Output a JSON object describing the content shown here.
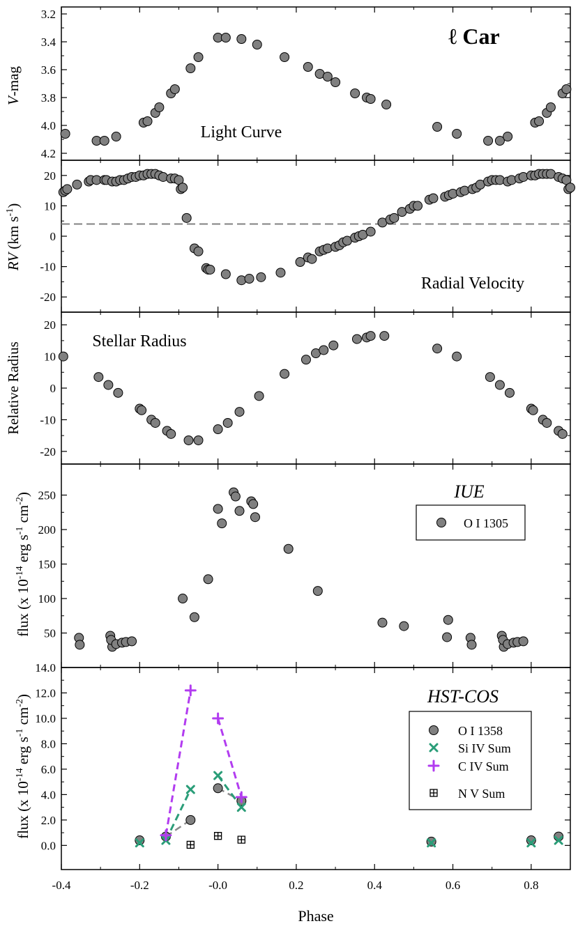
{
  "title": "ℓ Car",
  "xaxis": {
    "label": "Phase",
    "range": [
      -0.4,
      0.9
    ],
    "ticks": [
      "-0.4",
      "-0.2",
      "-0.0",
      "0.2",
      "0.4",
      "0.6",
      "0.8"
    ]
  },
  "colors": {
    "marker_fill": "#808080",
    "siiv": "#2a9d78",
    "civ": "#b23cf0",
    "oi_line": "#8a8a8a",
    "vline": "#808080"
  },
  "panels": {
    "light": {
      "ylabel_italic": "V",
      "ylabel_rest": "-mag",
      "annotation": "Light Curve"
    },
    "rv": {
      "ylabel_italic": "RV",
      "ylabel_rest": " (km s",
      "ylabel_sup": "-1",
      "ylabel_close": ")",
      "annotation": "Radial Velocity"
    },
    "radius": {
      "ylabel": "Relative Radius",
      "annotation": "Stellar Radius"
    },
    "iue": {
      "ylabel_a": "flux (x 10",
      "ylabel_sup1": "-14",
      "ylabel_b": " erg s",
      "ylabel_sup2": "-1",
      "ylabel_c": " cm",
      "ylabel_sup3": "-2",
      "ylabel_d": ")",
      "annotation": "IUE",
      "legend": [
        "O I 1305"
      ]
    },
    "cos": {
      "ylabel_a": "flux (x 10",
      "ylabel_sup1": "-14",
      "ylabel_b": " erg s",
      "ylabel_sup2": "-1",
      "ylabel_c": " cm",
      "ylabel_sup3": "-2",
      "ylabel_d": ")",
      "annotation": "HST-COS",
      "legend": [
        "O I 1358",
        "Si IV Sum",
        "C IV Sum",
        "N V Sum"
      ]
    }
  },
  "chart_data": [
    {
      "type": "scatter",
      "panel": "light",
      "ylabel": "V-mag",
      "yrange": [
        4.25,
        3.15
      ],
      "reversed": true,
      "yticks": [
        "3.2",
        "3.4",
        "3.6",
        "3.8",
        "4.0",
        "4.2"
      ],
      "x": [
        -0.39,
        -0.31,
        -0.29,
        -0.26,
        -0.19,
        -0.18,
        -0.16,
        -0.15,
        -0.12,
        -0.11,
        -0.07,
        -0.05,
        0.0,
        0.02,
        0.06,
        0.1,
        0.17,
        0.23,
        0.26,
        0.28,
        0.3,
        0.35,
        0.38,
        0.39,
        0.43,
        0.56,
        0.61,
        0.69,
        0.72,
        0.74,
        0.81,
        0.82,
        0.84,
        0.85,
        0.88,
        0.89
      ],
      "y": [
        4.06,
        4.11,
        4.11,
        4.08,
        3.98,
        3.97,
        3.91,
        3.87,
        3.77,
        3.74,
        3.59,
        3.51,
        3.37,
        3.37,
        3.38,
        3.42,
        3.51,
        3.58,
        3.63,
        3.65,
        3.69,
        3.77,
        3.8,
        3.81,
        3.85,
        4.01,
        4.06,
        4.11,
        4.11,
        4.08,
        3.98,
        3.97,
        3.91,
        3.87,
        3.77,
        3.74
      ]
    },
    {
      "type": "scatter",
      "panel": "rv",
      "ylabel": "RV (km s-1)",
      "yrange": [
        -25,
        25
      ],
      "yticks": [
        "-20",
        "-10",
        "0",
        "10",
        "20"
      ],
      "reference_line": 4,
      "x": [
        -0.395,
        -0.39,
        -0.385,
        -0.36,
        -0.33,
        -0.325,
        -0.31,
        -0.29,
        -0.285,
        -0.27,
        -0.26,
        -0.25,
        -0.24,
        -0.23,
        -0.22,
        -0.21,
        -0.2,
        -0.19,
        -0.18,
        -0.17,
        -0.16,
        -0.15,
        -0.14,
        -0.12,
        -0.11,
        -0.1,
        -0.095,
        -0.09,
        -0.08,
        -0.06,
        -0.05,
        -0.03,
        -0.025,
        -0.02,
        0.02,
        0.06,
        0.08,
        0.11,
        0.16,
        0.21,
        0.23,
        0.24,
        0.26,
        0.27,
        0.28,
        0.3,
        0.31,
        0.32,
        0.33,
        0.35,
        0.36,
        0.37,
        0.39,
        0.42,
        0.44,
        0.45,
        0.47,
        0.49,
        0.5,
        0.51,
        0.54,
        0.55,
        0.58,
        0.59,
        0.6,
        0.62,
        0.63,
        0.65,
        0.66,
        0.67,
        0.69,
        0.7,
        0.71,
        0.72,
        0.74,
        0.75,
        0.77,
        0.78,
        0.8,
        0.81,
        0.82,
        0.83,
        0.84,
        0.85,
        0.87,
        0.88,
        0.89,
        0.895,
        0.9
      ],
      "y": [
        14.5,
        15,
        15.5,
        17,
        18,
        18.5,
        18.5,
        18.5,
        18.5,
        18,
        18,
        18.5,
        18.5,
        19,
        19.5,
        19.5,
        20,
        20,
        20.5,
        20.5,
        20.5,
        20,
        19.5,
        19,
        19,
        18.5,
        15.5,
        16,
        6,
        -4,
        -5,
        -10.5,
        -11,
        -11,
        -12.5,
        -14.5,
        -14,
        -13.5,
        -12,
        -8.5,
        -7,
        -7.5,
        -5,
        -4.5,
        -4,
        -3.5,
        -3,
        -2,
        -1.5,
        -0.5,
        0,
        0.5,
        1.5,
        4.5,
        5.5,
        6,
        8,
        9,
        10,
        10,
        12,
        12.5,
        13,
        13.5,
        14,
        14.5,
        15,
        15.5,
        16,
        17,
        18,
        18.5,
        18.5,
        18.5,
        18,
        18.5,
        19,
        19.5,
        20,
        20,
        20.5,
        20.5,
        20.5,
        20.5,
        19.5,
        19,
        18.5,
        15.5,
        16
      ]
    },
    {
      "type": "scatter",
      "panel": "radius",
      "ylabel": "Relative Radius",
      "yrange": [
        -24,
        24
      ],
      "yticks": [
        "-20",
        "-10",
        "0",
        "10",
        "20"
      ],
      "x": [
        -0.395,
        -0.305,
        -0.28,
        -0.255,
        -0.2,
        -0.195,
        -0.17,
        -0.16,
        -0.13,
        -0.12,
        -0.075,
        -0.05,
        0.0,
        0.025,
        0.055,
        0.105,
        0.17,
        0.225,
        0.25,
        0.27,
        0.295,
        0.355,
        0.38,
        0.39,
        0.425,
        0.56,
        0.61,
        0.695,
        0.72,
        0.745,
        0.8,
        0.805,
        0.83,
        0.84,
        0.87,
        0.88
      ],
      "y": [
        10,
        3.5,
        1,
        -1.5,
        -6.5,
        -7,
        -10,
        -11,
        -13.5,
        -14.5,
        -16.5,
        -16.5,
        -13,
        -11,
        -7.5,
        -2.5,
        4.5,
        9,
        11,
        12,
        13.5,
        15.5,
        16,
        16.5,
        16.5,
        12.5,
        10,
        3.5,
        1,
        -1.5,
        -6.5,
        -7,
        -10,
        -11,
        -13.5,
        -14.5
      ]
    },
    {
      "type": "scatter",
      "panel": "iue",
      "ylabel": "flux (x 10-14 erg s-1 cm-2)",
      "yrange": [
        0,
        295
      ],
      "yticks": [
        "50",
        "100",
        "150",
        "200",
        "250"
      ],
      "series": [
        {
          "name": "O I 1305",
          "x": [
            -0.355,
            -0.353,
            -0.275,
            -0.27,
            -0.273,
            -0.26,
            -0.245,
            -0.235,
            -0.22,
            -0.09,
            -0.06,
            -0.025,
            0.0,
            0.01,
            0.04,
            0.045,
            0.055,
            0.085,
            0.09,
            0.095,
            0.18,
            0.255,
            0.42,
            0.475,
            0.585,
            0.588,
            0.645,
            0.648,
            0.725,
            0.73,
            0.728,
            0.74,
            0.755,
            0.765,
            0.78
          ],
          "y": [
            43,
            33,
            46,
            30,
            40,
            34,
            36,
            37,
            38,
            100,
            73,
            128,
            230,
            209,
            254,
            248,
            227,
            241,
            237,
            218,
            172,
            111,
            65,
            60,
            44,
            69,
            43,
            33,
            46,
            30,
            40,
            34,
            36,
            37,
            38
          ]
        }
      ]
    },
    {
      "type": "scatter",
      "panel": "cos",
      "ylabel": "flux (x 10-14 erg s-1 cm-2)",
      "yrange": [
        -1.9,
        14.0
      ],
      "yticks": [
        "0.0",
        "2.0",
        "4.0",
        "6.0",
        "8.0",
        "10.0",
        "12.0",
        "14.0"
      ],
      "series": [
        {
          "name": "O I 1358",
          "marker": "circle",
          "x": [
            -0.2,
            -0.133,
            -0.07,
            0.0,
            0.06,
            0.545,
            0.8,
            0.87
          ],
          "y": [
            0.4,
            0.7,
            2.0,
            4.5,
            3.5,
            0.3,
            0.4,
            0.7
          ]
        },
        {
          "name": "Si IV Sum",
          "marker": "x",
          "x": [
            -0.2,
            -0.133,
            -0.07,
            0.0,
            0.06,
            0.545,
            0.8,
            0.87
          ],
          "y": [
            0.2,
            0.4,
            4.4,
            5.5,
            3.0,
            0.2,
            0.2,
            0.4
          ]
        },
        {
          "name": "C IV Sum",
          "marker": "plus",
          "x": [
            -0.133,
            -0.07,
            0.0,
            0.06
          ],
          "y": [
            0.8,
            12.2,
            10.0,
            3.8
          ]
        },
        {
          "name": "N V Sum",
          "marker": "boxplus",
          "x": [
            -0.07,
            0.0,
            0.06
          ],
          "y": [
            0.05,
            0.75,
            0.45
          ]
        }
      ]
    }
  ]
}
